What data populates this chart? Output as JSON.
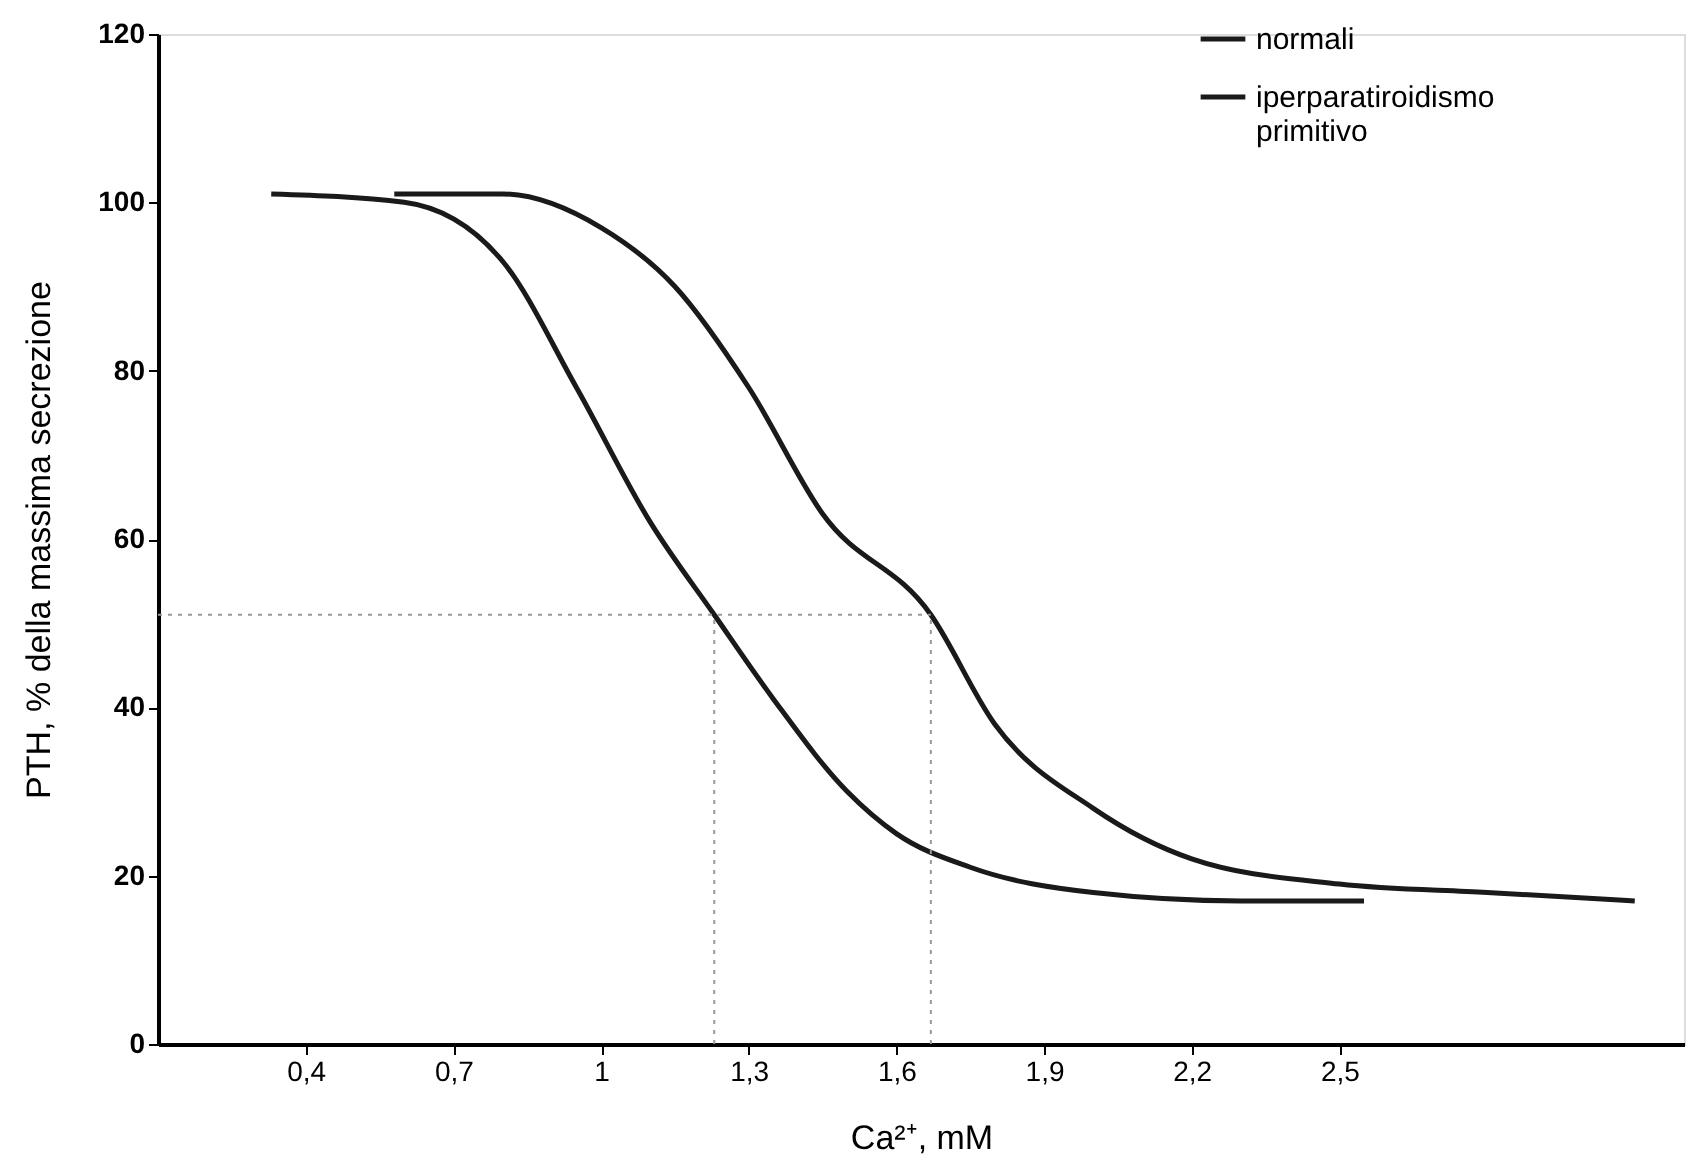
{
  "chart_data": {
    "type": "line",
    "xlabel": "Ca²⁺, mM",
    "ylabel": "PTH, % della massima secrezione",
    "xlim": [
      0.1,
      3.2
    ],
    "xticks": [
      {
        "value": 0.4,
        "label": "0,4"
      },
      {
        "value": 0.7,
        "label": "0,7"
      },
      1,
      {
        "value": 1.3,
        "label": "1,3"
      },
      {
        "value": 1.6,
        "label": "1,6"
      },
      {
        "value": 1.9,
        "label": "1,9"
      },
      {
        "value": 2.2,
        "label": "2,2"
      },
      {
        "value": 2.5,
        "label": "2,5"
      }
    ],
    "ylim": [
      0,
      120
    ],
    "yticks": [
      0,
      20,
      40,
      60,
      80,
      100,
      120
    ],
    "grid": false,
    "legend": "top right",
    "marker": "none",
    "line_style": "solid",
    "series": [
      {
        "name": "normali",
        "color": "#1a1a1a",
        "x": [
          0.33,
          0.6,
          0.8,
          0.95,
          1.1,
          1.23,
          1.35,
          1.5,
          1.6,
          1.75,
          2.0,
          2.3,
          2.55
        ],
        "values": [
          101,
          100,
          93,
          78,
          62,
          51,
          41,
          30,
          25,
          21,
          18,
          17,
          17
        ]
      },
      {
        "name": "iperparatiroidismo primitivo",
        "color": "#1a1a1a",
        "x": [
          0.58,
          0.8,
          1.0,
          1.15,
          1.3,
          1.45,
          1.67,
          1.8,
          2.0,
          2.2,
          2.5,
          2.8,
          3.1
        ],
        "values": [
          101,
          101,
          97,
          90,
          78,
          63,
          51,
          38,
          28,
          22,
          19,
          18,
          17
        ]
      }
    ],
    "ref_lines": [
      {
        "axis": "y",
        "value": 51,
        "color": "#999999",
        "line_style": "dotted"
      },
      {
        "axis": "x",
        "value": 1.23,
        "color": "#999999",
        "line_style": "dotted"
      },
      {
        "axis": "x",
        "value": 1.67,
        "color": "#999999",
        "line_style": "dotted"
      }
    ]
  }
}
